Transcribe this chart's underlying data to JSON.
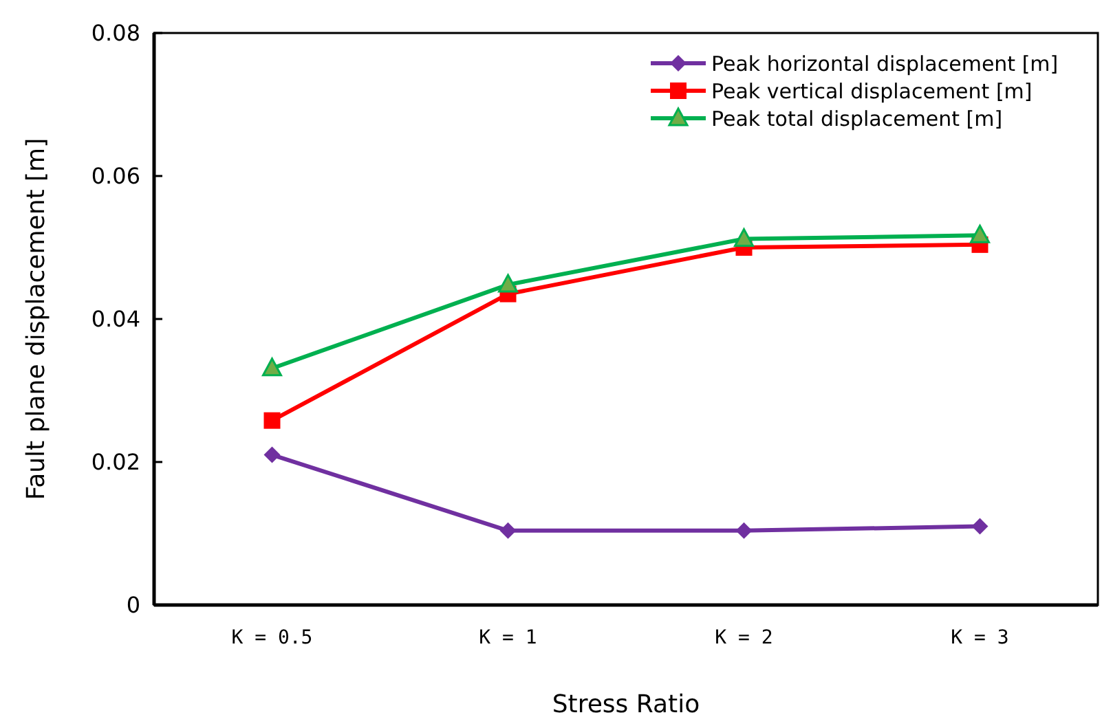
{
  "chart_data": {
    "type": "line",
    "xlabel": "Stress Ratio",
    "ylabel": "Fault plane displacement [m]",
    "categories": [
      "K = 0.5",
      "K = 1",
      "K = 2",
      "K = 3"
    ],
    "series": [
      {
        "name": "Peak horizontal displacement [m]",
        "color": "#7030a0",
        "marker": "diamond",
        "values": [
          0.021,
          0.0104,
          0.0104,
          0.011
        ]
      },
      {
        "name": "Peak vertical displacement [m]",
        "color": "#ff0000",
        "marker": "square",
        "values": [
          0.0258,
          0.0435,
          0.05,
          0.0504
        ]
      },
      {
        "name": "Peak total displacement [m]",
        "color": "#00b050",
        "marker": "triangle",
        "values": [
          0.0331,
          0.0448,
          0.0512,
          0.0517
        ]
      }
    ],
    "ylim": [
      0,
      0.08
    ],
    "yticks": [
      {
        "value": 0,
        "label": "0"
      },
      0.02,
      0.04,
      0.06,
      0.08
    ],
    "grid": false,
    "legend": "top right"
  }
}
